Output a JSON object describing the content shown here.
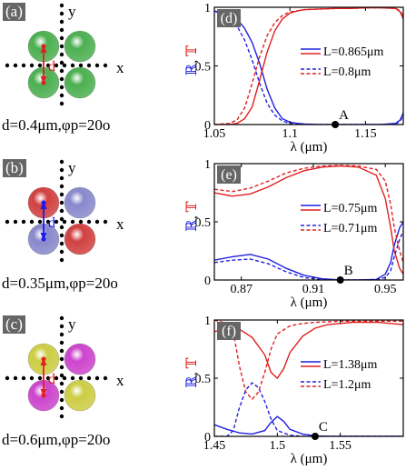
{
  "figure": {
    "left_panels": [
      {
        "label": "(a)",
        "axis_y": "y",
        "axis_x": "x",
        "dim_label": "d",
        "params": "d=0.4μm,φp=20o",
        "dimer_color": "#e02020",
        "spheres": [
          "#4caf50",
          "#4caf50",
          "#4caf50",
          "#4caf50"
        ]
      },
      {
        "label": "(b)",
        "axis_y": "y",
        "axis_x": "x",
        "dim_label": "d",
        "params": "d=0.35μm,φp=20o",
        "dimer_color": "#1a1aee",
        "spheres": [
          "#d04040",
          "#8888cc",
          "#8888cc",
          "#d04040"
        ]
      },
      {
        "label": "(c)",
        "axis_y": "y",
        "axis_x": "x",
        "dim_label": "d",
        "params": "d=0.6μm,φp=20o",
        "dimer_color": "#e02020",
        "spheres": [
          "#cccc44",
          "#cc44cc",
          "#cc44cc",
          "#cccc44"
        ]
      }
    ],
    "ylabel_parts": [
      "ℝ",
      ", ",
      "𝕋"
    ]
  },
  "chart_data": [
    {
      "label": "(d)",
      "type": "line",
      "xlabel": "λ (μm)",
      "xlim": [
        1.05,
        1.175
      ],
      "ylim": [
        0,
        1
      ],
      "xticks": [
        1.05,
        1.1,
        1.15
      ],
      "xtick_labels": [
        "1.05",
        "1.1",
        "1.15"
      ],
      "yticks": [
        0,
        0.5,
        1
      ],
      "ytick_labels": [
        "0",
        "0.5",
        "1"
      ],
      "marker": {
        "label": "A",
        "x": 1.13,
        "y": 0
      },
      "legend": [
        "L=0.865μm",
        "L=0.8μm"
      ],
      "series": [
        {
          "name": "L=0.865μm",
          "quantity": "R",
          "color": "blue",
          "dash": false,
          "x": [
            1.05,
            1.06,
            1.065,
            1.07,
            1.075,
            1.08,
            1.085,
            1.09,
            1.095,
            1.1,
            1.105,
            1.11,
            1.12,
            1.13,
            1.14,
            1.15,
            1.16,
            1.17,
            1.173,
            1.175
          ],
          "y": [
            0.97,
            0.93,
            0.9,
            0.82,
            0.7,
            0.52,
            0.3,
            0.14,
            0.05,
            0.02,
            0.01,
            0.005,
            0,
            0,
            0,
            0,
            0,
            0.01,
            0.04,
            0.1
          ]
        },
        {
          "name": "L=0.865μm",
          "quantity": "T",
          "color": "red",
          "dash": false,
          "x": [
            1.05,
            1.06,
            1.065,
            1.07,
            1.075,
            1.08,
            1.085,
            1.09,
            1.095,
            1.1,
            1.105,
            1.11,
            1.12,
            1.13,
            1.14,
            1.15,
            1.16,
            1.17,
            1.173,
            1.175
          ],
          "y": [
            0,
            0,
            0.01,
            0.05,
            0.15,
            0.38,
            0.62,
            0.8,
            0.9,
            0.95,
            0.97,
            0.98,
            0.985,
            0.99,
            0.99,
            0.995,
            0.995,
            0.99,
            0.96,
            0.9
          ]
        },
        {
          "name": "L=0.8μm",
          "quantity": "R",
          "color": "blue",
          "dash": true,
          "x": [
            1.05,
            1.06,
            1.065,
            1.07,
            1.075,
            1.08,
            1.085,
            1.09,
            1.095,
            1.1,
            1.105,
            1.11,
            1.12,
            1.13,
            1.14,
            1.15,
            1.16,
            1.17,
            1.173,
            1.175
          ],
          "y": [
            0.97,
            0.9,
            0.84,
            0.72,
            0.55,
            0.35,
            0.18,
            0.08,
            0.03,
            0.01,
            0.005,
            0,
            0,
            0,
            0,
            0,
            0,
            0.005,
            0.03,
            0.08
          ]
        },
        {
          "name": "L=0.8μm",
          "quantity": "T",
          "color": "red",
          "dash": true,
          "x": [
            1.05,
            1.06,
            1.065,
            1.07,
            1.075,
            1.08,
            1.085,
            1.09,
            1.095,
            1.1,
            1.105,
            1.11,
            1.12,
            1.13,
            1.14,
            1.15,
            1.16,
            1.17,
            1.173,
            1.175
          ],
          "y": [
            0,
            0.01,
            0.04,
            0.14,
            0.35,
            0.58,
            0.76,
            0.87,
            0.93,
            0.96,
            0.97,
            0.98,
            0.985,
            0.99,
            0.99,
            0.995,
            0.995,
            0.99,
            0.97,
            0.92
          ]
        }
      ]
    },
    {
      "label": "(e)",
      "type": "line",
      "xlabel": "λ (μm)",
      "xlim": [
        0.855,
        0.96
      ],
      "ylim": [
        0,
        1
      ],
      "xticks": [
        0.87,
        0.91,
        0.95
      ],
      "xtick_labels": [
        "0.87",
        "0.91",
        "0.95"
      ],
      "yticks": [
        0,
        0.5,
        1
      ],
      "ytick_labels": [
        "0",
        "0.5",
        "1"
      ],
      "marker": {
        "label": "B",
        "x": 0.925,
        "y": 0
      },
      "legend": [
        "L=0.75μm",
        "L=0.71μm"
      ],
      "series": [
        {
          "name": "L=0.75μm",
          "quantity": "R",
          "color": "blue",
          "dash": false,
          "x": [
            0.855,
            0.865,
            0.875,
            0.885,
            0.895,
            0.905,
            0.915,
            0.925,
            0.935,
            0.945,
            0.95,
            0.953,
            0.955,
            0.958,
            0.96
          ],
          "y": [
            0.17,
            0.2,
            0.22,
            0.18,
            0.1,
            0.04,
            0.01,
            0,
            0,
            0.005,
            0.05,
            0.15,
            0.3,
            0.45,
            0.5
          ]
        },
        {
          "name": "L=0.75μm",
          "quantity": "T",
          "color": "red",
          "dash": false,
          "x": [
            0.855,
            0.865,
            0.875,
            0.885,
            0.895,
            0.905,
            0.915,
            0.925,
            0.935,
            0.945,
            0.95,
            0.953,
            0.955,
            0.958,
            0.96
          ],
          "y": [
            0.75,
            0.72,
            0.74,
            0.8,
            0.88,
            0.94,
            0.97,
            0.98,
            0.97,
            0.9,
            0.7,
            0.45,
            0.25,
            0.1,
            0.05
          ]
        },
        {
          "name": "L=0.71μm",
          "quantity": "R",
          "color": "blue",
          "dash": true,
          "x": [
            0.855,
            0.865,
            0.875,
            0.885,
            0.895,
            0.905,
            0.915,
            0.925,
            0.935,
            0.945,
            0.95,
            0.953,
            0.955,
            0.958,
            0.96
          ],
          "y": [
            0.15,
            0.17,
            0.18,
            0.14,
            0.07,
            0.02,
            0.005,
            0,
            0,
            0.005,
            0.02,
            0.08,
            0.2,
            0.35,
            0.42
          ]
        },
        {
          "name": "L=0.71μm",
          "quantity": "T",
          "color": "red",
          "dash": true,
          "x": [
            0.855,
            0.865,
            0.875,
            0.885,
            0.895,
            0.905,
            0.915,
            0.925,
            0.935,
            0.945,
            0.95,
            0.953,
            0.955,
            0.958,
            0.96
          ],
          "y": [
            0.78,
            0.76,
            0.79,
            0.85,
            0.92,
            0.96,
            0.98,
            0.985,
            0.98,
            0.95,
            0.85,
            0.65,
            0.45,
            0.25,
            0.15
          ]
        }
      ]
    },
    {
      "label": "(f)",
      "type": "line",
      "xlabel": "λ (μm)",
      "xlim": [
        1.45,
        1.6
      ],
      "ylim": [
        0,
        1
      ],
      "xticks": [
        1.45,
        1.5,
        1.55
      ],
      "xtick_labels": [
        "1.45",
        "1.5",
        "1.55"
      ],
      "yticks": [
        0,
        0.5,
        1
      ],
      "ytick_labels": [
        "0",
        "0.5",
        "1"
      ],
      "marker": {
        "label": "C",
        "x": 1.53,
        "y": 0
      },
      "legend": [
        "L=1.38μm",
        "L=1.2μm"
      ],
      "series": [
        {
          "name": "L=1.38μm",
          "quantity": "R",
          "color": "blue",
          "dash": false,
          "x": [
            1.45,
            1.46,
            1.47,
            1.48,
            1.49,
            1.495,
            1.5,
            1.505,
            1.51,
            1.52,
            1.53,
            1.54,
            1.55,
            1.56,
            1.57,
            1.58,
            1.59,
            1.6
          ],
          "y": [
            0.1,
            0.06,
            0.03,
            0.02,
            0.05,
            0.12,
            0.17,
            0.13,
            0.06,
            0.02,
            0.005,
            0,
            0,
            0,
            0,
            0,
            0,
            0
          ]
        },
        {
          "name": "L=1.38μm",
          "quantity": "T",
          "color": "red",
          "dash": false,
          "x": [
            1.45,
            1.46,
            1.47,
            1.48,
            1.49,
            1.495,
            1.5,
            1.505,
            1.51,
            1.52,
            1.53,
            1.54,
            1.55,
            1.56,
            1.57,
            1.58,
            1.59,
            1.6
          ],
          "y": [
            0.9,
            0.93,
            0.92,
            0.85,
            0.7,
            0.55,
            0.5,
            0.58,
            0.72,
            0.86,
            0.93,
            0.96,
            0.97,
            0.98,
            0.98,
            0.98,
            0.97,
            0.96
          ]
        },
        {
          "name": "L=1.2μm",
          "quantity": "R",
          "color": "blue",
          "dash": true,
          "x": [
            1.45,
            1.46,
            1.465,
            1.47,
            1.475,
            1.48,
            1.485,
            1.49,
            1.495,
            1.5,
            1.51,
            1.52,
            1.53,
            1.55,
            1.57,
            1.6
          ],
          "y": [
            0,
            0,
            0.05,
            0.25,
            0.4,
            0.46,
            0.42,
            0.3,
            0.15,
            0.05,
            0.01,
            0,
            0,
            0,
            0,
            0
          ]
        },
        {
          "name": "L=1.2μm",
          "quantity": "T",
          "color": "red",
          "dash": true,
          "x": [
            1.45,
            1.46,
            1.465,
            1.47,
            1.475,
            1.48,
            1.485,
            1.49,
            1.495,
            1.5,
            1.51,
            1.52,
            1.53,
            1.55,
            1.57,
            1.6
          ],
          "y": [
            1,
            0.97,
            0.9,
            0.6,
            0.38,
            0.32,
            0.38,
            0.55,
            0.75,
            0.88,
            0.95,
            0.97,
            0.98,
            0.99,
            0.99,
            0.99
          ]
        }
      ]
    }
  ]
}
